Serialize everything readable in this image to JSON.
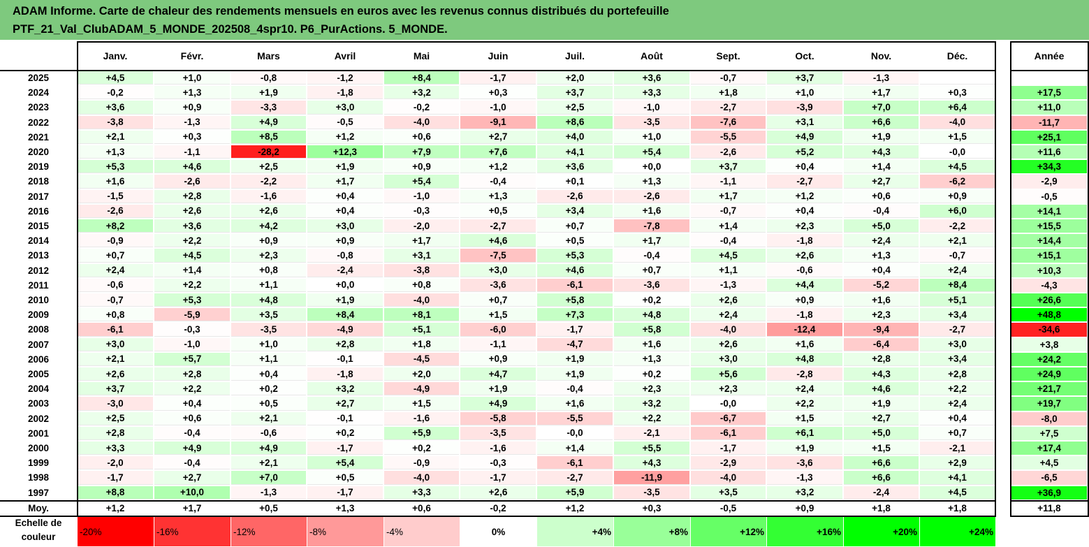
{
  "title": {
    "line1": "ADAM Informe. Carte de chaleur des rendements mensuels en euros avec les revenus connus distribués du portefeuille",
    "line2": "PTF_21_Val_ClubADAM_5_MONDE_202508_4spr10. P6_PurActions. 5_MONDE."
  },
  "chart_data": {
    "type": "heatmap",
    "title": "ADAM Informe. Carte de chaleur des rendements mensuels en euros avec les revenus connus distribués du portefeuille PTF_21_Val_ClubADAM_5_MONDE_202508_4spr10. P6_PurActions. 5_MONDE.",
    "months": [
      "Janv.",
      "Févr.",
      "Mars",
      "Avril",
      "Mai",
      "Juin",
      "Juil.",
      "Août",
      "Sept.",
      "Oct.",
      "Nov.",
      "Déc."
    ],
    "annual_label": "Année",
    "rows": [
      {
        "year": "2025",
        "values": [
          "+4,5",
          "+1,0",
          "-0,8",
          "-1,2",
          "+8,4",
          "-1,7",
          "+2,0",
          "+3,6",
          "-0,7",
          "+3,7",
          "-1,3",
          ""
        ],
        "annual": ""
      },
      {
        "year": "2024",
        "values": [
          "-0,2",
          "+1,3",
          "+1,9",
          "-1,8",
          "+3,2",
          "+0,3",
          "+3,7",
          "+3,3",
          "+1,8",
          "+1,0",
          "+1,7",
          "+0,3"
        ],
        "annual": "+17,5"
      },
      {
        "year": "2023",
        "values": [
          "+3,6",
          "+0,9",
          "-3,3",
          "+3,0",
          "-0,2",
          "-1,0",
          "+2,5",
          "-1,0",
          "-2,7",
          "-3,9",
          "+7,0",
          "+6,4"
        ],
        "annual": "+11,0"
      },
      {
        "year": "2022",
        "values": [
          "-3,8",
          "-1,3",
          "+4,9",
          "-0,5",
          "-4,0",
          "-9,1",
          "+8,6",
          "-3,5",
          "-7,6",
          "+3,1",
          "+6,6",
          "-4,0"
        ],
        "annual": "-11,7"
      },
      {
        "year": "2021",
        "values": [
          "+2,1",
          "+0,3",
          "+8,5",
          "+1,2",
          "+0,6",
          "+2,7",
          "+4,0",
          "+1,0",
          "-5,5",
          "+4,9",
          "+1,9",
          "+1,5"
        ],
        "annual": "+25,1"
      },
      {
        "year": "2020",
        "values": [
          "+1,3",
          "-1,1",
          "-28,2",
          "+12,3",
          "+7,9",
          "+7,6",
          "+4,1",
          "+5,4",
          "-2,6",
          "+5,2",
          "+4,3",
          "-0,0"
        ],
        "annual": "+11,6"
      },
      {
        "year": "2019",
        "values": [
          "+5,3",
          "+4,6",
          "+2,5",
          "+1,9",
          "+0,9",
          "+1,2",
          "+3,6",
          "+0,0",
          "+3,7",
          "+0,4",
          "+1,4",
          "+4,5"
        ],
        "annual": "+34,3"
      },
      {
        "year": "2018",
        "values": [
          "+1,6",
          "-2,6",
          "-2,2",
          "+1,7",
          "+5,4",
          "-0,4",
          "+0,1",
          "+1,3",
          "-1,1",
          "-2,7",
          "+2,7",
          "-6,2"
        ],
        "annual": "-2,9"
      },
      {
        "year": "2017",
        "values": [
          "-1,5",
          "+2,8",
          "-1,6",
          "+0,4",
          "-1,0",
          "+1,3",
          "-2,6",
          "-2,6",
          "+1,7",
          "+1,2",
          "+0,6",
          "+0,9"
        ],
        "annual": "-0,5"
      },
      {
        "year": "2016",
        "values": [
          "-2,6",
          "+2,6",
          "+2,6",
          "+0,4",
          "-0,3",
          "+0,5",
          "+3,4",
          "+1,6",
          "-0,7",
          "+0,4",
          "-0,4",
          "+6,0"
        ],
        "annual": "+14,1"
      },
      {
        "year": "2015",
        "values": [
          "+8,2",
          "+3,6",
          "+4,2",
          "+3,0",
          "-2,0",
          "-2,7",
          "+0,7",
          "-7,8",
          "+1,4",
          "+2,3",
          "+5,0",
          "-2,2"
        ],
        "annual": "+15,5"
      },
      {
        "year": "2014",
        "values": [
          "-0,9",
          "+2,2",
          "+0,9",
          "+0,9",
          "+1,7",
          "+4,6",
          "+0,5",
          "+1,7",
          "-0,4",
          "-1,8",
          "+2,4",
          "+2,1"
        ],
        "annual": "+14,4"
      },
      {
        "year": "2013",
        "values": [
          "+0,7",
          "+4,5",
          "+2,3",
          "-0,8",
          "+3,1",
          "-7,5",
          "+5,3",
          "-0,4",
          "+4,5",
          "+2,6",
          "+1,3",
          "-0,7"
        ],
        "annual": "+15,1"
      },
      {
        "year": "2012",
        "values": [
          "+2,4",
          "+1,4",
          "+0,8",
          "-2,4",
          "-3,8",
          "+3,0",
          "+4,6",
          "+0,7",
          "+1,1",
          "-0,6",
          "+0,4",
          "+2,4"
        ],
        "annual": "+10,3"
      },
      {
        "year": "2011",
        "values": [
          "-0,6",
          "+2,2",
          "+1,1",
          "+0,0",
          "+0,8",
          "-3,6",
          "-6,1",
          "-3,6",
          "-1,3",
          "+4,4",
          "-5,2",
          "+8,4"
        ],
        "annual": "-4,3"
      },
      {
        "year": "2010",
        "values": [
          "-0,7",
          "+5,3",
          "+4,8",
          "+1,9",
          "-4,0",
          "+0,7",
          "+5,8",
          "+0,2",
          "+2,6",
          "+0,9",
          "+1,6",
          "+5,1"
        ],
        "annual": "+26,6"
      },
      {
        "year": "2009",
        "values": [
          "+0,8",
          "-5,9",
          "+3,5",
          "+8,4",
          "+8,1",
          "+1,5",
          "+7,3",
          "+4,8",
          "+2,4",
          "-1,8",
          "+2,3",
          "+3,4"
        ],
        "annual": "+48,8"
      },
      {
        "year": "2008",
        "values": [
          "-6,1",
          "-0,3",
          "-3,5",
          "-4,9",
          "+5,1",
          "-6,0",
          "-1,7",
          "+5,8",
          "-4,0",
          "-12,4",
          "-9,4",
          "-2,7"
        ],
        "annual": "-34,6"
      },
      {
        "year": "2007",
        "values": [
          "+3,0",
          "-1,0",
          "+1,0",
          "+2,8",
          "+1,8",
          "-1,1",
          "-4,7",
          "+1,6",
          "+2,6",
          "+1,6",
          "-6,4",
          "+3,0"
        ],
        "annual": "+3,8"
      },
      {
        "year": "2006",
        "values": [
          "+2,1",
          "+5,7",
          "+1,1",
          "-0,1",
          "-4,5",
          "+0,9",
          "+1,9",
          "+1,3",
          "+3,0",
          "+4,8",
          "+2,8",
          "+3,4"
        ],
        "annual": "+24,2"
      },
      {
        "year": "2005",
        "values": [
          "+2,6",
          "+2,8",
          "+0,4",
          "-1,8",
          "+2,0",
          "+4,7",
          "+1,9",
          "+0,2",
          "+5,6",
          "-2,8",
          "+4,3",
          "+2,8"
        ],
        "annual": "+24,9"
      },
      {
        "year": "2004",
        "values": [
          "+3,7",
          "+2,2",
          "+0,2",
          "+3,2",
          "-4,9",
          "+1,9",
          "-0,4",
          "+2,3",
          "+2,3",
          "+2,4",
          "+4,6",
          "+2,2"
        ],
        "annual": "+21,7"
      },
      {
        "year": "2003",
        "values": [
          "-3,0",
          "+0,4",
          "+0,5",
          "+2,7",
          "+1,5",
          "+4,9",
          "+1,6",
          "+3,2",
          "-0,0",
          "+2,2",
          "+1,9",
          "+2,4"
        ],
        "annual": "+19,7"
      },
      {
        "year": "2002",
        "values": [
          "+2,5",
          "+0,6",
          "+2,1",
          "-0,1",
          "-1,6",
          "-5,8",
          "-5,5",
          "+2,2",
          "-6,7",
          "+1,5",
          "+2,7",
          "+0,4"
        ],
        "annual": "-8,0"
      },
      {
        "year": "2001",
        "values": [
          "+2,8",
          "-0,4",
          "-0,6",
          "+0,2",
          "+5,9",
          "-3,5",
          "-0,0",
          "-2,1",
          "-6,1",
          "+6,1",
          "+5,0",
          "+0,7"
        ],
        "annual": "+7,5"
      },
      {
        "year": "2000",
        "values": [
          "+3,3",
          "+4,9",
          "+4,9",
          "-1,7",
          "+0,2",
          "-1,6",
          "+1,4",
          "+5,5",
          "-1,7",
          "+1,9",
          "+1,5",
          "-2,1"
        ],
        "annual": "+17,4"
      },
      {
        "year": "1999",
        "values": [
          "-2,0",
          "-0,4",
          "+2,1",
          "+5,4",
          "-0,9",
          "-0,3",
          "-6,1",
          "+4,3",
          "-2,9",
          "-3,6",
          "+6,6",
          "+2,9"
        ],
        "annual": "+4,5"
      },
      {
        "year": "1998",
        "values": [
          "-1,7",
          "+2,7",
          "+7,0",
          "+0,5",
          "-4,0",
          "-1,7",
          "-2,7",
          "-11,9",
          "-4,0",
          "-1,3",
          "+6,6",
          "+4,1"
        ],
        "annual": "-6,5"
      },
      {
        "year": "1997",
        "values": [
          "+8,8",
          "+10,0",
          "-1,3",
          "-1,7",
          "+3,3",
          "+2,6",
          "+5,9",
          "-3,5",
          "+3,5",
          "+3,2",
          "-2,4",
          "+4,5"
        ],
        "annual": "+36,9"
      }
    ],
    "average": {
      "label": "Moy.",
      "values": [
        "+1,2",
        "+1,7",
        "+0,5",
        "+1,3",
        "+0,6",
        "-0,2",
        "+1,2",
        "+0,3",
        "-0,5",
        "+0,9",
        "+1,8",
        "+1,8"
      ],
      "annual": "+11,8"
    },
    "scale": {
      "label_line1": "Echelle de",
      "label_line2": "couleur",
      "steps": [
        {
          "text": "-20%",
          "value": -20
        },
        {
          "text": "-16%",
          "value": -16
        },
        {
          "text": "-12%",
          "value": -12
        },
        {
          "text": "-8%",
          "value": -8
        },
        {
          "text": "-4%",
          "value": -4
        },
        {
          "text": "0%",
          "value": 0
        },
        {
          "text": "+4%",
          "value": 4
        },
        {
          "text": "+8%",
          "value": 8
        },
        {
          "text": "+12%",
          "value": 12
        },
        {
          "text": "+16%",
          "value": 16
        },
        {
          "text": "+20%",
          "value": 20
        },
        {
          "text": "+24%",
          "value": 24
        }
      ]
    },
    "colors": {
      "negative": "#ff0000",
      "neutral": "#ffffff",
      "positive": "#00ff00",
      "title_band": "#7ec97e"
    }
  }
}
